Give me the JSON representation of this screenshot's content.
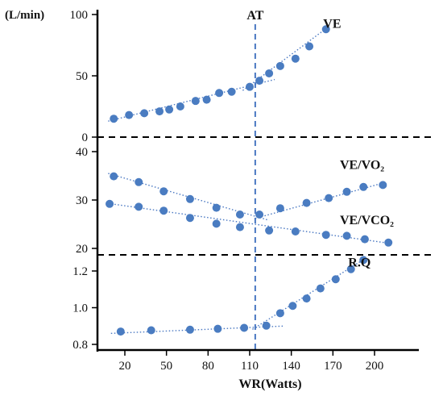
{
  "chart_data": {
    "type": "scatter",
    "xlabel": "WR(Watts)",
    "x_ticks": [
      {
        "label": "20",
        "value": 20
      },
      {
        "label": "50",
        "value": 50
      },
      {
        "label": "80",
        "value": 80
      },
      {
        "label": "110",
        "value": 110
      },
      {
        "label": "140",
        "value": 140
      },
      {
        "label": "170",
        "value": 170
      },
      {
        "label": "200",
        "value": 200
      }
    ],
    "xlim": [
      -4,
      240
    ],
    "at": {
      "label": "AT",
      "x": 114
    },
    "colors": {
      "points": "#4a7cc1",
      "at_line": "#4a78c2",
      "axes": "#000000"
    },
    "panels": [
      {
        "id": "ve",
        "unit_label": "(L/min)",
        "ylim": [
          0,
          100
        ],
        "y_ticks": [
          {
            "label": "100",
            "value": 100
          },
          {
            "label": "50",
            "value": 50
          },
          {
            "label": "0",
            "value": 0
          }
        ],
        "series": [
          {
            "name": "VE",
            "label_pos": [
              163,
              89
            ],
            "x": [
              12,
              23,
              34,
              45,
              52,
              60,
              71,
              79,
              88,
              97,
              110,
              117,
              124,
              132,
              143,
              153,
              165
            ],
            "y": [
              15,
              18,
              19.5,
              21,
              22.5,
              25,
              29.5,
              30.5,
              36,
              37,
              41,
              46,
              52,
              58,
              64,
              74,
              88
            ],
            "fits": [
              [
                [
                  8,
                  13
                ],
                [
                  128,
                  47
                ]
              ],
              [
                [
                  105,
                  38
                ],
                [
                  168,
                  91
                ]
              ]
            ]
          }
        ]
      },
      {
        "id": "ratio",
        "ylim": [
          19,
          40
        ],
        "y_ticks": [
          {
            "label": "40",
            "value": 40
          },
          {
            "label": "30",
            "value": 30
          },
          {
            "label": "20",
            "value": 20
          }
        ],
        "series": [
          {
            "name": "VE/VO₂",
            "label_pos": [
              175,
              36.4
            ],
            "x": [
              12,
              30,
              48,
              67,
              86,
              103,
              117,
              132,
              151,
              167,
              180,
              192,
              206
            ],
            "y": [
              34.9,
              33.7,
              31.8,
              30.2,
              28.4,
              27,
              27,
              28.3,
              29.4,
              30.4,
              31.7,
              32.7,
              33.1
            ],
            "fits": [
              [
                [
                  8,
                  35.5
                ],
                [
                  124,
                  25.8
                ]
              ],
              [
                [
                  114,
                  26.2
                ],
                [
                  206,
                  33.5
                ]
              ]
            ]
          },
          {
            "name": "VE/VCO₂",
            "label_pos": [
              175,
              25
            ],
            "x": [
              9,
              30,
              48,
              67,
              86,
              103,
              124,
              143,
              165,
              180,
              193,
              210
            ],
            "y": [
              29.2,
              28.6,
              27.8,
              26.3,
              25.1,
              24.4,
              23.7,
              23.5,
              22.8,
              22.6,
              21.9,
              21.2
            ],
            "fits": [
              [
                [
                  8,
                  29.3
                ],
                [
                  212,
                  21
                ]
              ]
            ]
          }
        ]
      },
      {
        "id": "rq",
        "ylim": [
          0.8,
          1.26
        ],
        "y_ticks": [
          {
            "label": "1.2",
            "value": 1.2
          },
          {
            "label": "1.0",
            "value": 1.0
          },
          {
            "label": "0.8",
            "value": 0.8
          }
        ],
        "series": [
          {
            "name": "R.Q",
            "label_pos": [
              181,
              1.225
            ],
            "x": [
              17,
              39,
              67,
              87,
              106,
              122,
              132,
              141,
              151,
              161,
              172,
              183,
              192
            ],
            "y": [
              0.87,
              0.877,
              0.88,
              0.885,
              0.89,
              0.902,
              0.97,
              1.01,
              1.05,
              1.105,
              1.155,
              1.21,
              1.26
            ],
            "fits": [
              [
                [
                  10,
                  0.86
                ],
                [
                  135,
                  0.9
                ]
              ],
              [
                [
                  112,
                  0.882
                ],
                [
                  192,
                  1.262
                ]
              ]
            ]
          }
        ]
      }
    ]
  }
}
